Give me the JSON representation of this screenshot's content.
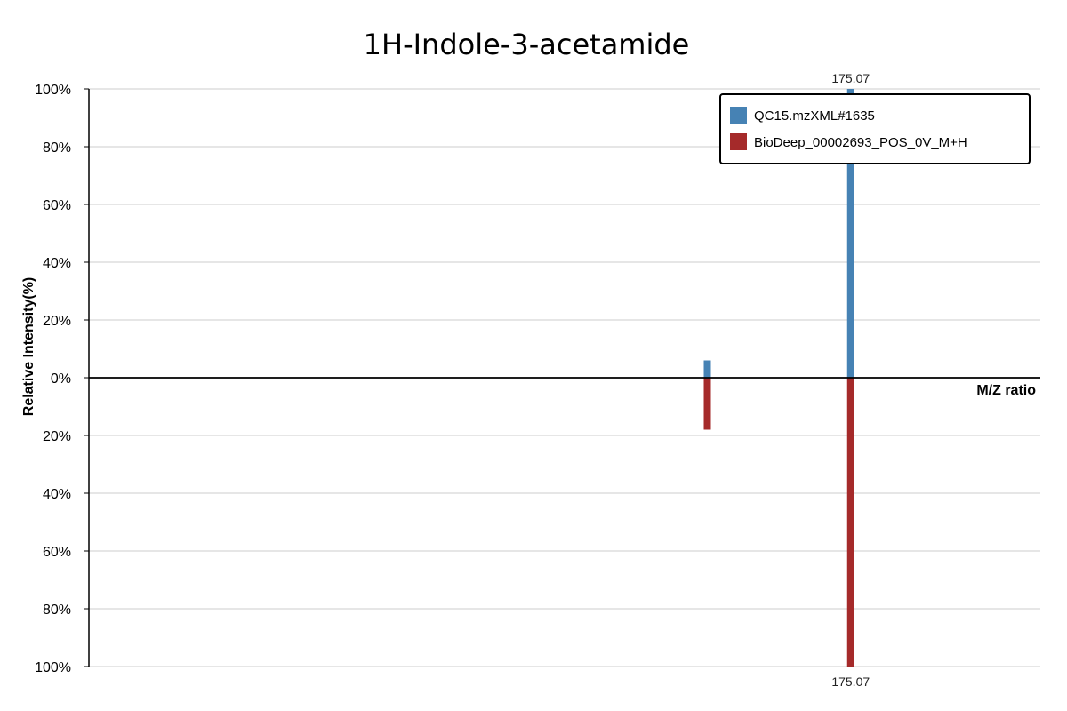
{
  "chart_data": {
    "type": "bar",
    "title": "1H-Indole-3-acetamide",
    "xlabel": "M/Z ratio",
    "ylabel": "Relative Intensity(%)",
    "ylim": [
      -100,
      100
    ],
    "y_ticks": [
      100,
      80,
      60,
      40,
      20,
      0,
      -20,
      -40,
      -60,
      -80,
      -100
    ],
    "y_tick_labels": [
      "100%",
      "80%",
      "60%",
      "40%",
      "20%",
      "0%",
      "20%",
      "40%",
      "60%",
      "80%",
      "100%"
    ],
    "x_range": [
      95,
      195
    ],
    "grid": true,
    "legend_position": "top-right",
    "colors": {
      "top": "#4682b4",
      "bottom": "#a52a2a"
    },
    "series": [
      {
        "name": "QC15.mzXML#1635",
        "direction": "up",
        "peaks": [
          {
            "mz": 160.0,
            "intensity": 6
          },
          {
            "mz": 175.07,
            "intensity": 100,
            "label": "175.07"
          }
        ]
      },
      {
        "name": "BioDeep_00002693_POS_0V_M+H",
        "direction": "down",
        "peaks": [
          {
            "mz": 160.0,
            "intensity": 18
          },
          {
            "mz": 175.07,
            "intensity": 100,
            "label": "175.07"
          }
        ]
      }
    ]
  }
}
